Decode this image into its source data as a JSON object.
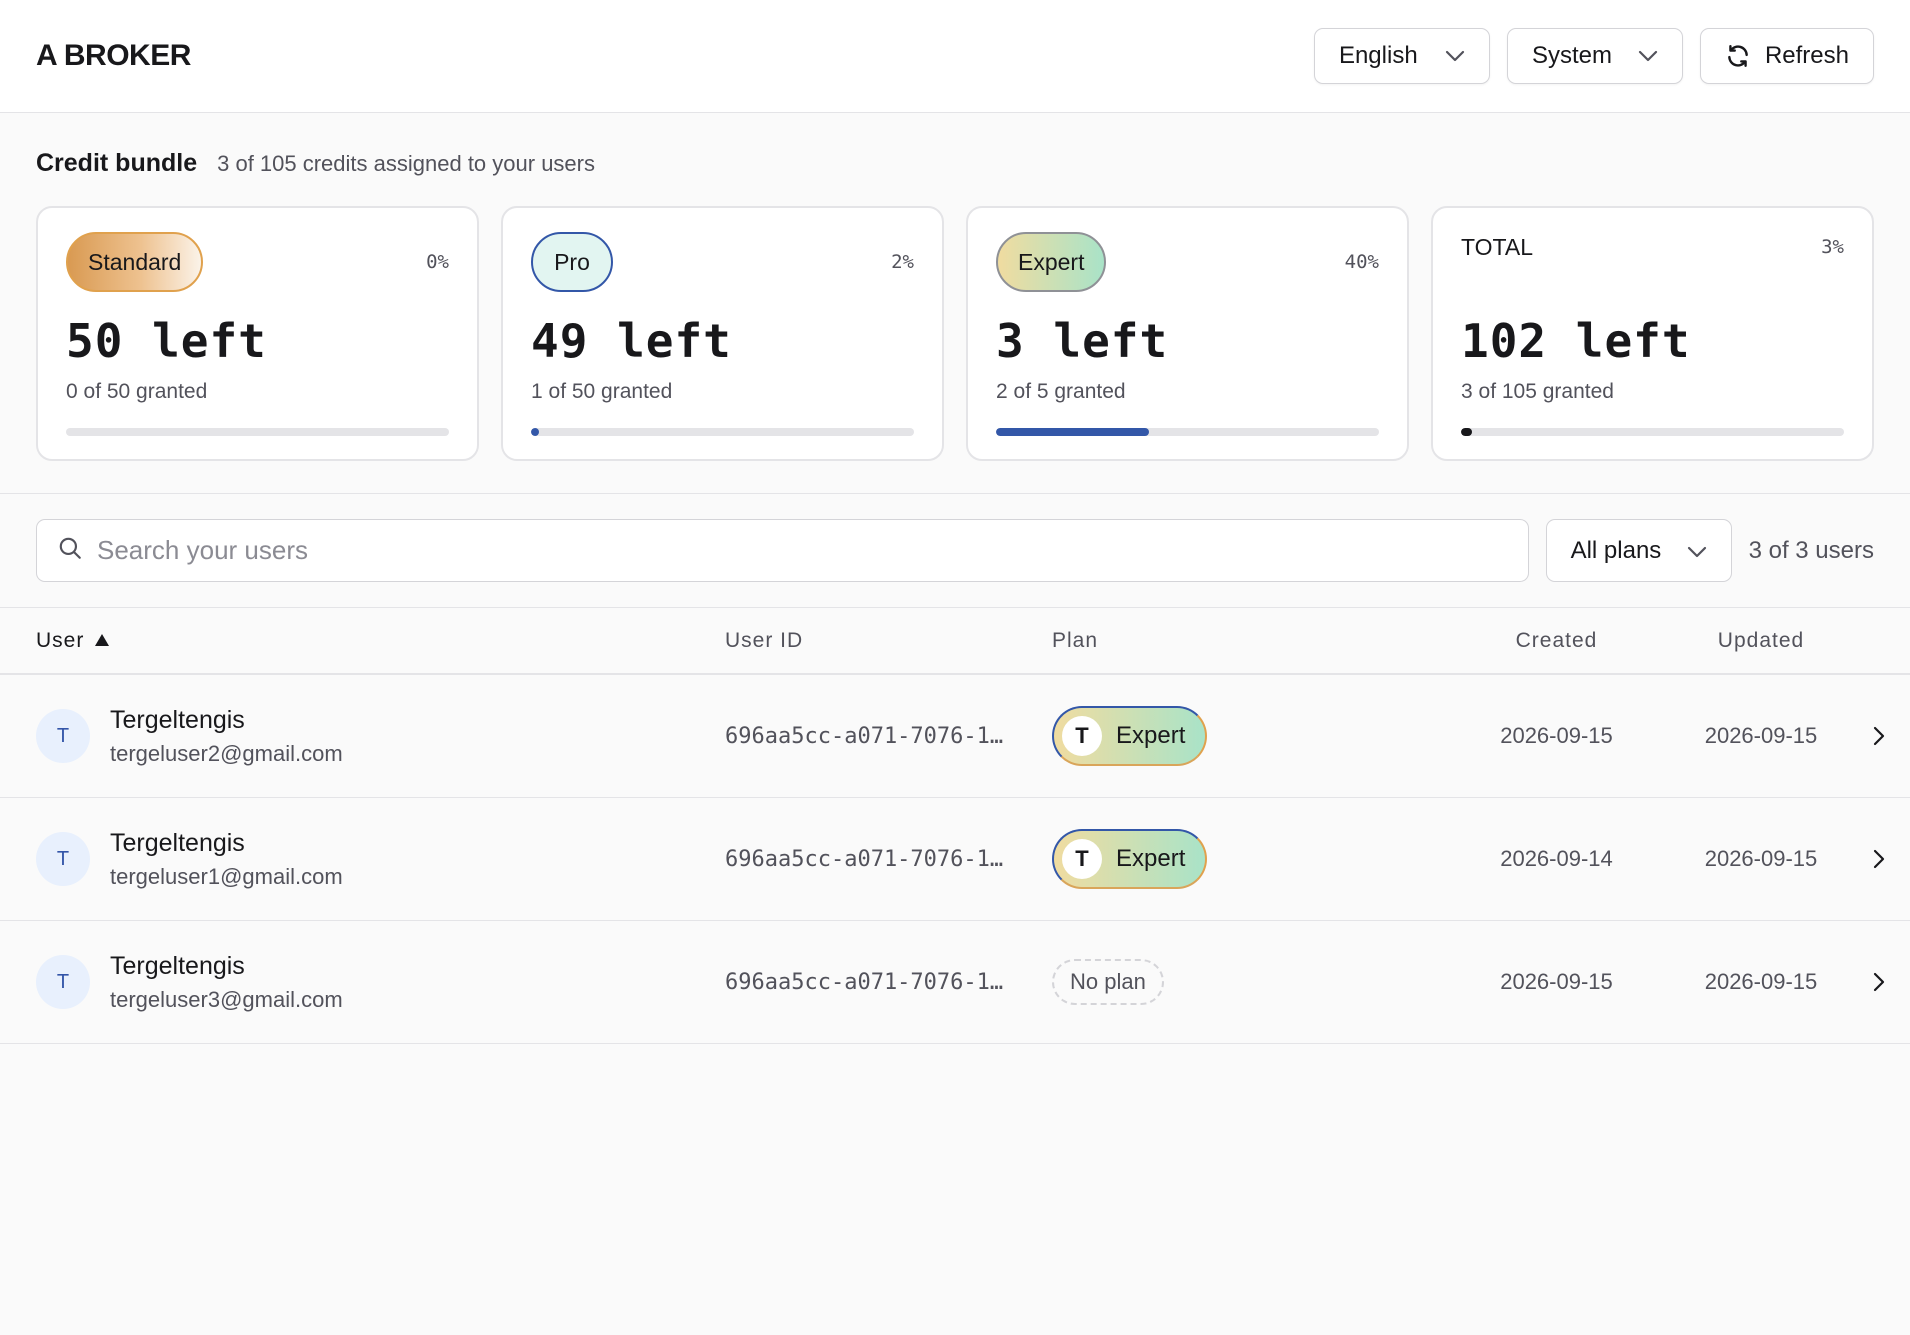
{
  "header": {
    "brand": "A BROKER",
    "language": "English",
    "theme": "System",
    "refresh_label": "Refresh"
  },
  "bundle": {
    "title": "Credit bundle",
    "subtitle": "3 of 105 credits assigned to your users",
    "cards": [
      {
        "name": "Standard",
        "pct": "0%",
        "left": "50 left",
        "granted": "0 of 50 granted",
        "progress": 0.0,
        "bar_color": "#3357a8"
      },
      {
        "name": "Pro",
        "pct": "2%",
        "left": "49 left",
        "granted": "1 of 50 granted",
        "progress": 0.02,
        "bar_color": "#3357a8"
      },
      {
        "name": "Expert",
        "pct": "40%",
        "left": "3 left",
        "granted": "2 of 5 granted",
        "progress": 0.4,
        "bar_color": "#3357a8"
      },
      {
        "name": "TOTAL",
        "pct": "3%",
        "left": "102 left",
        "granted": "3 of 105 granted",
        "progress": 0.03,
        "bar_color": "#18181b"
      }
    ]
  },
  "filters": {
    "search_placeholder": "Search your users",
    "plan_filter": "All plans",
    "count": "3 of 3 users"
  },
  "table": {
    "headers": {
      "user": "User",
      "user_id": "User ID",
      "plan": "Plan",
      "created": "Created",
      "updated": "Updated"
    },
    "rows": [
      {
        "initial": "T",
        "name": "Tergeltengis",
        "email": "tergeluser2@gmail.com",
        "user_id": "696aa5cc-a071-7076-1…",
        "plan_initial": "T",
        "plan": "Expert",
        "created": "2026-09-15",
        "updated": "2026-09-15"
      },
      {
        "initial": "T",
        "name": "Tergeltengis",
        "email": "tergeluser1@gmail.com",
        "user_id": "696aa5cc-a071-7076-1…",
        "plan_initial": "T",
        "plan": "Expert",
        "created": "2026-09-14",
        "updated": "2026-09-15"
      },
      {
        "initial": "T",
        "name": "Tergeltengis",
        "email": "tergeluser3@gmail.com",
        "user_id": "696aa5cc-a071-7076-1…",
        "plan_initial": "",
        "plan": "No plan",
        "created": "2026-09-15",
        "updated": "2026-09-15"
      }
    ]
  },
  "icons": {
    "language_dropdown": "chevron-down-icon",
    "theme_dropdown": "chevron-down-icon",
    "refresh": "refresh-icon",
    "search": "search-icon",
    "plan_dropdown": "chevron-down-icon",
    "sort": "sort-up-icon",
    "row_open": "chevron-right-icon"
  }
}
